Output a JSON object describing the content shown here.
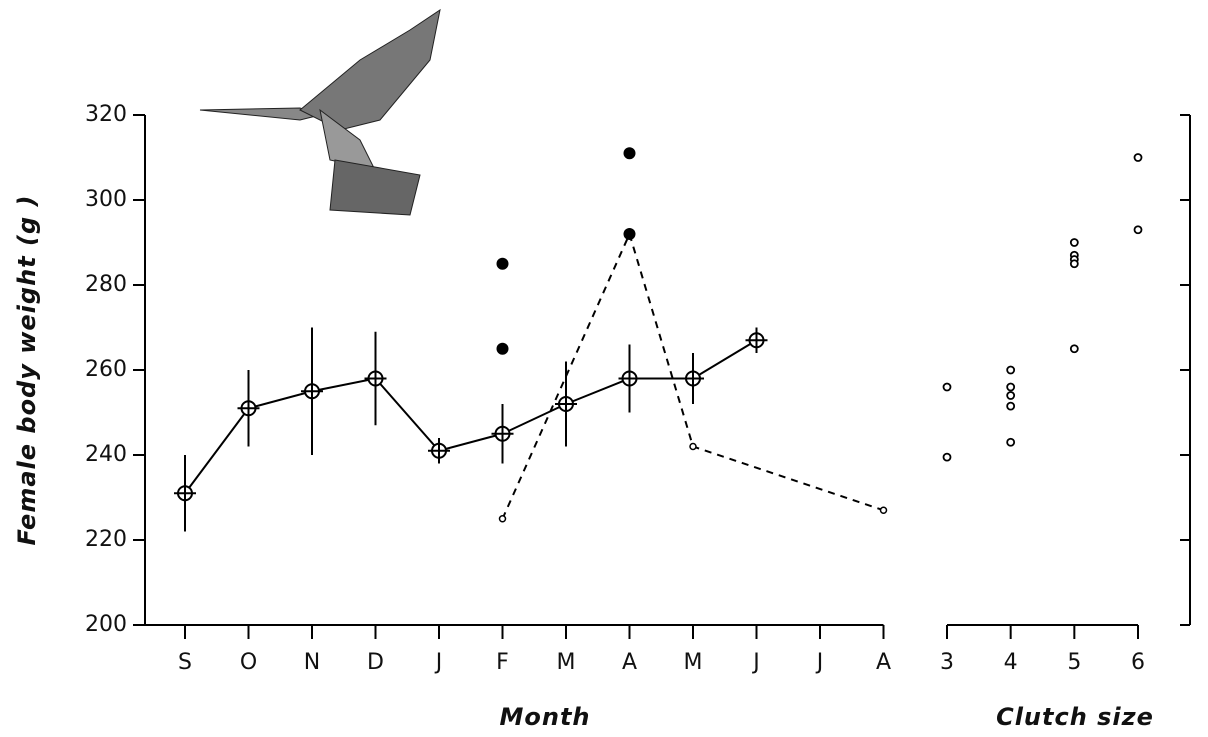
{
  "chart_data": [
    {
      "type": "line",
      "y_label": "Female body weight (g )",
      "x_label": "Month",
      "categories": [
        "S",
        "O",
        "N",
        "D",
        "J",
        "F",
        "M",
        "A",
        "M",
        "J",
        "J",
        "A"
      ],
      "ylim": [
        200,
        320
      ],
      "yticks": [
        200,
        220,
        240,
        260,
        280,
        300,
        320
      ],
      "series": [
        {
          "color": "#000",
          "style": "solid",
          "marker": "crosshair",
          "values": [
            231,
            251,
            255,
            258,
            241,
            245,
            252,
            258,
            258,
            267,
            null,
            null
          ],
          "errors": [
            9,
            9,
            15,
            11,
            3,
            7,
            10,
            8,
            6,
            3,
            null,
            null
          ]
        },
        {
          "color": "#000",
          "style": "dashed",
          "marker": "open",
          "x": [
            "F",
            "A",
            "M",
            "A"
          ],
          "values": [
            225,
            292,
            242,
            227
          ]
        },
        {
          "color": "#000",
          "style": "none",
          "marker": "filled",
          "x": [
            "F",
            "F",
            "A",
            "A"
          ],
          "values": [
            285,
            265,
            311,
            292
          ]
        }
      ]
    },
    {
      "type": "scatter",
      "x_label": "Clutch size",
      "color": "#000",
      "xlim": [
        3,
        6
      ],
      "xticks": [
        3,
        4,
        5,
        6
      ],
      "ylim": [
        200,
        320
      ],
      "yticks": [
        200,
        220,
        240,
        260,
        280,
        300,
        320
      ],
      "x": [
        3,
        3,
        4,
        4,
        4,
        4,
        4,
        5,
        5,
        5,
        5,
        5,
        6,
        6
      ],
      "y": [
        256,
        239.5,
        260,
        256,
        254,
        251.5,
        243,
        290,
        287,
        286,
        285,
        265,
        310,
        293
      ]
    }
  ]
}
